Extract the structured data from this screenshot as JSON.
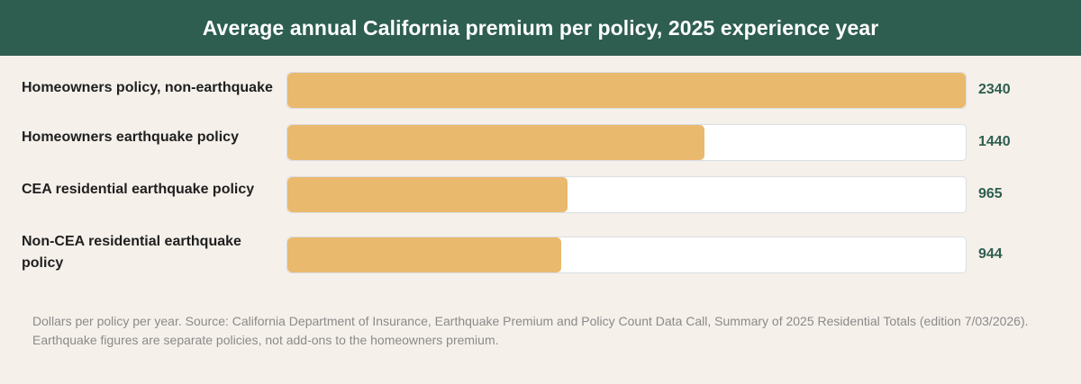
{
  "header": {
    "title": "Average annual California premium per policy, 2025 experience year"
  },
  "chart_data": {
    "type": "bar",
    "orientation": "horizontal",
    "title": "Average annual California premium per policy, 2025 experience year",
    "categories": [
      "Homeowners policy, non-earthquake",
      "Homeowners earthquake policy",
      "CEA residential earthquake policy",
      "Non-CEA residential earthquake policy"
    ],
    "values": [
      2340,
      1440,
      965,
      944
    ],
    "xlim": [
      0,
      2340
    ],
    "grid": false,
    "colors": {
      "bar": "#e9b96d",
      "track": "#ffffff",
      "value_text": "#2e5e50",
      "header": "#2e5e50"
    }
  },
  "footer": {
    "note_line1": "Dollars per policy per year. Source: California Department of Insurance, Earthquake Premium and Policy Count Data Call, Summary of 2025 Residential Totals (edition 7/03/2026).",
    "note_line2": "Earthquake figures are separate policies, not add-ons to the homeowners premium."
  }
}
